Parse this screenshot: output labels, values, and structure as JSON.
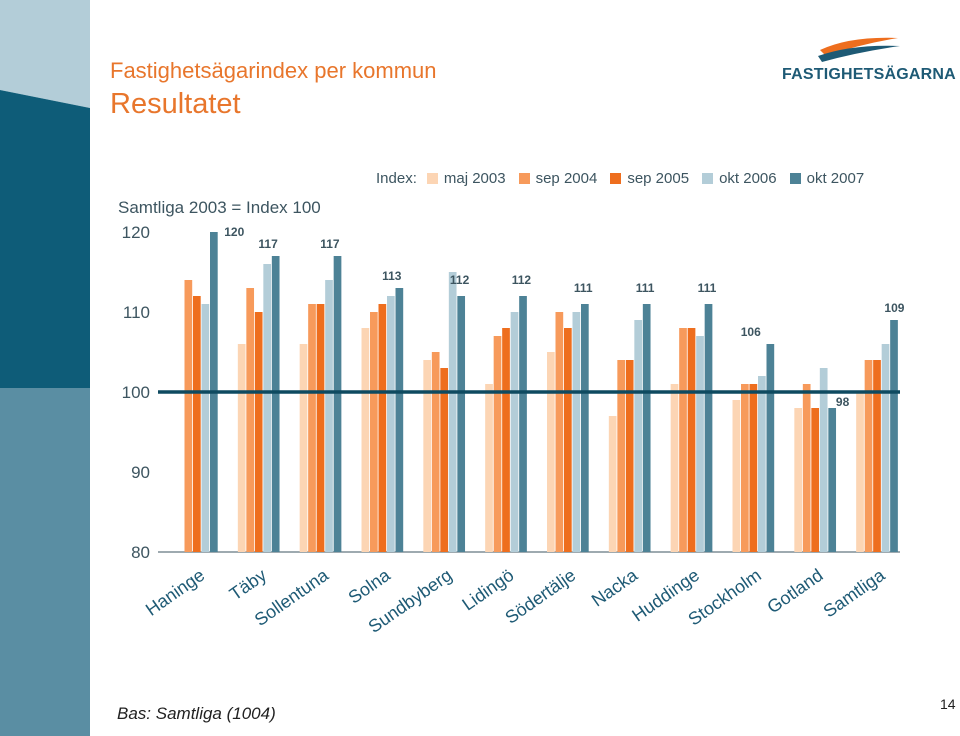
{
  "header": {
    "subtitle": "Fastighetsägarindex per kommun",
    "title": "Resultatet",
    "logo_text": "FASTIGHETSÄGARNA"
  },
  "baseline_note": "Samtliga 2003 = Index 100",
  "footer_note": "Bas: Samtliga (1004)",
  "page_number": "14",
  "chart_data": {
    "type": "bar",
    "legend_title": "Index:",
    "legend_position": "top",
    "categories": [
      "Haninge",
      "Täby",
      "Sollentuna",
      "Solna",
      "Sundbyberg",
      "Lidingö",
      "Södertälje",
      "Nacka",
      "Huddinge",
      "Stockholm",
      "Gotland",
      "Samtliga"
    ],
    "series": [
      {
        "name": "maj 2003",
        "color": "#fcd5b4",
        "values": [
          null,
          106,
          106,
          108,
          104,
          101,
          105,
          97,
          101,
          99,
          98,
          100
        ]
      },
      {
        "name": "sep 2004",
        "color": "#f79a5b",
        "values": [
          114,
          113,
          111,
          110,
          105,
          107,
          110,
          104,
          108,
          101,
          101,
          104
        ]
      },
      {
        "name": "sep 2005",
        "color": "#ee6e1e",
        "values": [
          112,
          110,
          111,
          111,
          103,
          108,
          108,
          104,
          108,
          101,
          98,
          104
        ]
      },
      {
        "name": "okt 2006",
        "color": "#b3cdd8",
        "values": [
          111,
          116,
          114,
          112,
          115,
          110,
          110,
          109,
          107,
          102,
          103,
          106
        ]
      },
      {
        "name": "okt 2007",
        "color": "#4d8296",
        "values": [
          120,
          117,
          117,
          113,
          112,
          112,
          111,
          111,
          111,
          106,
          98,
          109
        ]
      }
    ],
    "data_labels": [
      "120",
      "117",
      "117",
      "113",
      "112",
      "112",
      "111",
      "111",
      "111",
      "106",
      "98",
      "109"
    ],
    "y_ticks": [
      80,
      90,
      100,
      110,
      120
    ],
    "ylim": [
      80,
      120
    ],
    "reference_line": 100,
    "grid": false
  }
}
